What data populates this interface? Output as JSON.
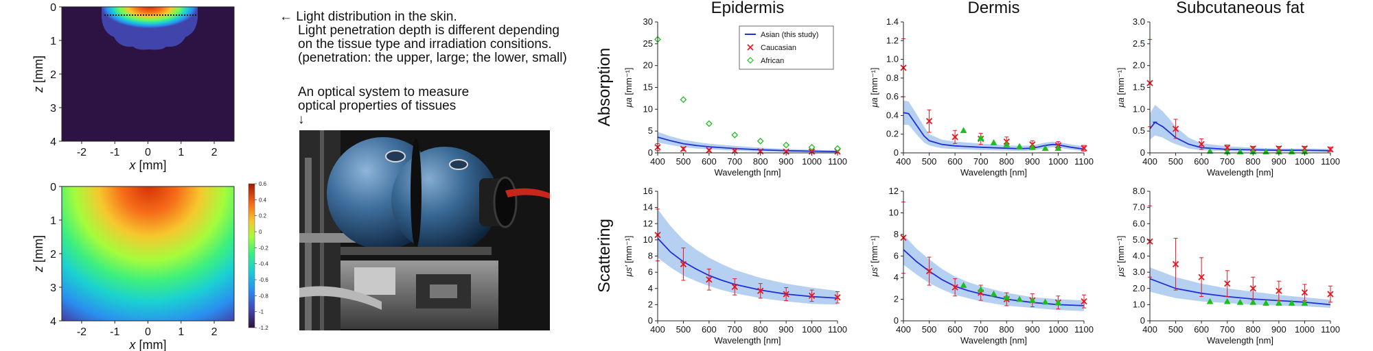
{
  "heatmaps": [
    {
      "xlabel": "x [mm]",
      "ylabel": "z [mm]",
      "xticks": [
        "-2",
        "-1",
        "0",
        "1",
        "2"
      ],
      "yticks": [
        "0",
        "1",
        "2",
        "3",
        "4"
      ],
      "xlim": [
        -2.6,
        2.6
      ],
      "ylim": [
        0,
        4
      ],
      "depth_style": "shallow"
    },
    {
      "xlabel": "x [mm]",
      "ylabel": "z [mm]",
      "xticks": [
        "-2",
        "-1",
        "0",
        "1",
        "2"
      ],
      "yticks": [
        "0",
        "1",
        "2",
        "3",
        "4"
      ],
      "xlim": [
        -2.6,
        2.6
      ],
      "ylim": [
        0,
        4
      ],
      "depth_style": "deep"
    }
  ],
  "colorbar": {
    "ticks": [
      "0.6",
      "0.4",
      "0.2",
      "0",
      "-0.2",
      "-0.4",
      "-0.6",
      "-0.8",
      "-1",
      "-1.2"
    ],
    "range": [
      -1.2,
      0.6
    ]
  },
  "annotations": {
    "light_lines": [
      "← Light distribution in the skin.",
      "Light penetration depth is different depending",
      "on the tissue type and irradiation consitions.",
      "(penetration: the upper, large; the lower, small)"
    ],
    "optical_lines": [
      "An optical system to measure",
      "optical properties of tissues",
      "↓"
    ]
  },
  "row_labels": {
    "absorption": "Absorption",
    "scattering": "Scattering"
  },
  "legend": {
    "asian": "Asian (this study)",
    "caucasian": "Caucasian",
    "african": "African"
  },
  "colors": {
    "asian": "#1f2fd6",
    "band": "#a9c8ee",
    "caucasian": "#e8141e",
    "african": "#1dbf1d"
  },
  "chart_data": [
    {
      "type": "line",
      "title": "Epidermis",
      "xlabel": "Wavelength [nm]",
      "ylabel": "μa [mm⁻¹]",
      "x": [
        400,
        500,
        600,
        700,
        800,
        900,
        1000,
        1100
      ],
      "xlim": [
        400,
        1100
      ],
      "ylim": [
        0,
        30
      ],
      "yticks": [
        "0",
        "5",
        "10",
        "15",
        "20",
        "25",
        "30"
      ],
      "series": [
        {
          "name": "Asian (this study)",
          "marker": "line",
          "x": [
            400,
            450,
            500,
            550,
            600,
            700,
            800,
            900,
            1000,
            1100
          ],
          "y": [
            3.6,
            2.8,
            2.1,
            1.7,
            1.4,
            1.0,
            0.7,
            0.5,
            0.4,
            0.3
          ],
          "band_low": [
            2.4,
            1.8,
            1.3,
            1.0,
            0.8,
            0.5,
            0.3,
            0.2,
            0.1,
            0.1
          ],
          "band_high": [
            4.8,
            3.8,
            3.0,
            2.5,
            2.1,
            1.6,
            1.2,
            0.9,
            0.7,
            0.6
          ]
        },
        {
          "name": "Caucasian",
          "marker": "x",
          "x": [
            400,
            500,
            600,
            700,
            800,
            900,
            1000,
            1100
          ],
          "y": [
            1.3,
            0.9,
            0.6,
            0.45,
            0.35,
            0.3,
            0.3,
            0.3
          ],
          "err": [
            0.8,
            0.4,
            0.3,
            0.2,
            0.2,
            0.2,
            0.2,
            0.2
          ]
        },
        {
          "name": "African",
          "marker": "diamond",
          "x": [
            400,
            500,
            600,
            700,
            800,
            900,
            1000,
            1100
          ],
          "y": [
            26,
            12.2,
            6.7,
            4.1,
            2.7,
            1.8,
            1.3,
            1.0
          ]
        }
      ]
    },
    {
      "type": "line",
      "title": "Dermis",
      "xlabel": "Wavelength [nm]",
      "ylabel": "μa [mm⁻¹]",
      "x": [
        400,
        500,
        600,
        700,
        800,
        900,
        1000,
        1100
      ],
      "xlim": [
        400,
        1100
      ],
      "ylim": [
        0,
        1.4
      ],
      "yticks": [
        "0",
        "0.2",
        "0.4",
        "0.6",
        "0.8",
        "1.0",
        "1.2",
        "1.4"
      ],
      "series": [
        {
          "name": "Asian (this study)",
          "marker": "line",
          "x": [
            400,
            420,
            450,
            480,
            500,
            550,
            600,
            700,
            800,
            850,
            900,
            950,
            980,
            1000,
            1050,
            1100
          ],
          "y": [
            0.43,
            0.42,
            0.3,
            0.18,
            0.13,
            0.09,
            0.075,
            0.06,
            0.05,
            0.045,
            0.05,
            0.08,
            0.09,
            0.085,
            0.06,
            0.04
          ],
          "band_low": [
            0.3,
            0.3,
            0.2,
            0.11,
            0.08,
            0.05,
            0.04,
            0.03,
            0.025,
            0.02,
            0.025,
            0.05,
            0.06,
            0.055,
            0.035,
            0.02
          ],
          "band_high": [
            0.56,
            0.55,
            0.42,
            0.28,
            0.2,
            0.14,
            0.12,
            0.1,
            0.08,
            0.075,
            0.08,
            0.11,
            0.12,
            0.115,
            0.09,
            0.07
          ]
        },
        {
          "name": "Caucasian",
          "marker": "x",
          "x": [
            400,
            500,
            600,
            700,
            800,
            900,
            1000,
            1100
          ],
          "y": [
            0.91,
            0.34,
            0.17,
            0.15,
            0.12,
            0.09,
            0.08,
            0.05
          ],
          "err": [
            0.31,
            0.12,
            0.07,
            0.06,
            0.05,
            0.04,
            0.04,
            0.03
          ]
        },
        {
          "name": "African",
          "marker": "triangle",
          "x": [
            633,
            700,
            750,
            800,
            850,
            900,
            950,
            1000
          ],
          "y": [
            0.24,
            0.16,
            0.11,
            0.09,
            0.07,
            0.06,
            0.05,
            0.05
          ]
        }
      ]
    },
    {
      "type": "line",
      "title": "Subcutaneous fat",
      "xlabel": "Wavelength [nm]",
      "ylabel": "μa [mm⁻¹]",
      "x": [
        400,
        500,
        600,
        700,
        800,
        900,
        1000,
        1100
      ],
      "xlim": [
        400,
        1100
      ],
      "ylim": [
        0,
        3.0
      ],
      "yticks": [
        "0",
        "0.5",
        "1.0",
        "1.5",
        "2.0",
        "2.5",
        "3.0"
      ],
      "series": [
        {
          "name": "Asian (this study)",
          "marker": "line",
          "x": [
            400,
            420,
            450,
            480,
            500,
            550,
            600,
            700,
            800,
            900,
            1000,
            1100
          ],
          "y": [
            0.55,
            0.7,
            0.6,
            0.45,
            0.35,
            0.2,
            0.12,
            0.08,
            0.07,
            0.06,
            0.06,
            0.05
          ],
          "band_low": [
            0.3,
            0.4,
            0.35,
            0.25,
            0.2,
            0.1,
            0.06,
            0.04,
            0.03,
            0.03,
            0.03,
            0.02
          ],
          "band_high": [
            0.9,
            1.1,
            0.95,
            0.75,
            0.6,
            0.35,
            0.22,
            0.15,
            0.12,
            0.1,
            0.1,
            0.09
          ],
          "peak_mark": {
            "x": 420,
            "y": 0.7
          }
        },
        {
          "name": "Caucasian",
          "marker": "x",
          "x": [
            400,
            500,
            600,
            700,
            800,
            900,
            1000,
            1100
          ],
          "y": [
            1.6,
            0.55,
            0.2,
            0.12,
            0.1,
            0.1,
            0.1,
            0.08
          ],
          "err": [
            1.0,
            0.22,
            0.12,
            0.06,
            0.05,
            0.05,
            0.05,
            0.05
          ]
        },
        {
          "name": "African",
          "marker": "triangle",
          "x": [
            633,
            700,
            750,
            800,
            850,
            900,
            950,
            1000
          ],
          "y": [
            0.04,
            0.03,
            0.03,
            0.03,
            0.03,
            0.03,
            0.03,
            0.03
          ]
        }
      ]
    },
    {
      "type": "line",
      "title": "",
      "xlabel": "Wavelength [nm]",
      "ylabel": "μs' [mm⁻¹]",
      "x": [
        400,
        500,
        600,
        700,
        800,
        900,
        1000,
        1100
      ],
      "xlim": [
        400,
        1100
      ],
      "ylim": [
        0,
        16
      ],
      "yticks": [
        "0",
        "2",
        "4",
        "6",
        "8",
        "10",
        "12",
        "14",
        "16"
      ],
      "series": [
        {
          "name": "Asian (this study)",
          "marker": "line",
          "x": [
            400,
            450,
            500,
            550,
            600,
            650,
            700,
            800,
            900,
            1000,
            1100
          ],
          "y": [
            10.2,
            8.5,
            7.3,
            6.4,
            5.6,
            5.0,
            4.5,
            3.8,
            3.3,
            3.0,
            2.8
          ],
          "band_low": [
            7.8,
            6.6,
            5.6,
            4.9,
            4.3,
            3.8,
            3.4,
            2.8,
            2.4,
            2.1,
            2.0
          ],
          "band_high": [
            13.8,
            11.7,
            10.0,
            8.8,
            7.8,
            7.0,
            6.3,
            5.3,
            4.6,
            4.1,
            3.7
          ]
        },
        {
          "name": "Caucasian",
          "marker": "x",
          "x": [
            400,
            500,
            600,
            700,
            800,
            900,
            1000,
            1100
          ],
          "y": [
            10.6,
            7.0,
            5.1,
            4.2,
            3.7,
            3.3,
            3.1,
            2.9
          ],
          "err": [
            3.2,
            2.0,
            1.3,
            1.0,
            0.9,
            0.8,
            0.7,
            0.7
          ]
        }
      ]
    },
    {
      "type": "line",
      "title": "",
      "xlabel": "Wavelength [nm]",
      "ylabel": "μs' [mm⁻¹]",
      "x": [
        400,
        500,
        600,
        700,
        800,
        900,
        1000,
        1100
      ],
      "xlim": [
        400,
        1100
      ],
      "ylim": [
        0,
        12
      ],
      "yticks": [
        "0",
        "2",
        "4",
        "6",
        "8",
        "10",
        "12"
      ],
      "series": [
        {
          "name": "Asian (this study)",
          "marker": "line",
          "x": [
            400,
            450,
            500,
            550,
            600,
            650,
            700,
            800,
            900,
            1000,
            1100
          ],
          "y": [
            6.6,
            5.5,
            4.6,
            3.8,
            3.2,
            2.8,
            2.5,
            2.0,
            1.7,
            1.5,
            1.4
          ],
          "band_low": [
            5.2,
            4.3,
            3.5,
            2.9,
            2.4,
            2.1,
            1.8,
            1.4,
            1.2,
            1.0,
            0.9
          ],
          "band_high": [
            8.0,
            6.7,
            5.7,
            4.8,
            4.1,
            3.6,
            3.2,
            2.6,
            2.2,
            2.0,
            1.9
          ]
        },
        {
          "name": "Caucasian",
          "marker": "x",
          "x": [
            400,
            500,
            600,
            700,
            800,
            900,
            1000,
            1100
          ],
          "y": [
            7.7,
            4.6,
            3.1,
            2.6,
            2.0,
            1.9,
            1.7,
            1.8
          ],
          "err": [
            3.3,
            1.3,
            0.8,
            0.7,
            0.6,
            0.6,
            0.6,
            0.6
          ]
        },
        {
          "name": "African",
          "marker": "triangle",
          "x": [
            633,
            700,
            750,
            800,
            850,
            900,
            950,
            1000
          ],
          "y": [
            3.3,
            2.9,
            2.5,
            2.2,
            2.0,
            1.9,
            1.75,
            1.7
          ]
        }
      ]
    },
    {
      "type": "line",
      "title": "",
      "xlabel": "Wavelength [nm]",
      "ylabel": "μs' [mm⁻¹]",
      "x": [
        400,
        500,
        600,
        700,
        800,
        900,
        1000,
        1100
      ],
      "xlim": [
        400,
        1100
      ],
      "ylim": [
        0,
        8.0
      ],
      "yticks": [
        "0",
        "1.0",
        "2.0",
        "3.0",
        "4.0",
        "5.0",
        "6.0",
        "7.0",
        "8.0"
      ],
      "series": [
        {
          "name": "Asian (this study)",
          "marker": "line",
          "x": [
            400,
            450,
            500,
            600,
            700,
            800,
            900,
            1000,
            1100
          ],
          "y": [
            2.6,
            2.3,
            2.0,
            1.7,
            1.5,
            1.35,
            1.25,
            1.15,
            1.0
          ],
          "band_low": [
            1.8,
            1.6,
            1.4,
            1.2,
            1.1,
            1.0,
            0.95,
            0.9,
            0.8
          ],
          "band_high": [
            3.3,
            3.0,
            2.7,
            2.3,
            2.0,
            1.8,
            1.6,
            1.45,
            1.3
          ]
        },
        {
          "name": "Caucasian",
          "marker": "x",
          "x": [
            400,
            500,
            600,
            700,
            800,
            900,
            1000,
            1100
          ],
          "y": [
            4.9,
            3.5,
            2.7,
            2.3,
            2.0,
            1.85,
            1.75,
            1.65
          ],
          "err": [
            2.2,
            1.6,
            1.2,
            0.8,
            0.7,
            0.6,
            0.5,
            0.5
          ]
        },
        {
          "name": "African",
          "marker": "triangle",
          "x": [
            633,
            700,
            750,
            800,
            850,
            900,
            950,
            1000
          ],
          "y": [
            1.2,
            1.2,
            1.15,
            1.15,
            1.1,
            1.1,
            1.1,
            1.1
          ]
        }
      ]
    }
  ]
}
